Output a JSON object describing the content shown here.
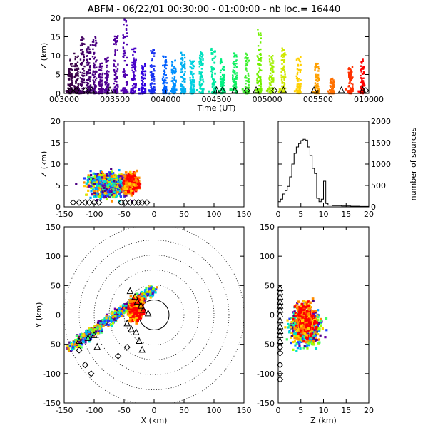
{
  "title": "ABFM - 06/22/01 00:30:00 - 01:00:00 - nb loc.=   16440",
  "chart_data": [
    {
      "id": "time_height",
      "type": "scatter",
      "xlabel": "Time (UT)",
      "ylabel": "Z (km)",
      "x_ticks": [
        "003000",
        "003500",
        "004000",
        "004500",
        "005000",
        "005500",
        "010000"
      ],
      "y_ticks": [
        0,
        5,
        10,
        15,
        20
      ],
      "ylim": [
        0,
        20
      ],
      "colors_by_time": true,
      "columns": [
        {
          "t": 0.02,
          "ztop": 9,
          "color": "#3a0048"
        },
        {
          "t": 0.04,
          "ztop": 11,
          "color": "#3a0048"
        },
        {
          "t": 0.06,
          "ztop": 15,
          "color": "#420060"
        },
        {
          "t": 0.08,
          "ztop": 13,
          "color": "#440070"
        },
        {
          "t": 0.1,
          "ztop": 15.5,
          "color": "#4a0080"
        },
        {
          "t": 0.12,
          "ztop": 8,
          "color": "#50008a"
        },
        {
          "t": 0.14,
          "ztop": 10,
          "color": "#500094"
        },
        {
          "t": 0.17,
          "ztop": 16,
          "color": "#52009e"
        },
        {
          "t": 0.2,
          "ztop": 20,
          "color": "#5000b0"
        },
        {
          "t": 0.23,
          "ztop": 12,
          "color": "#4800c8"
        },
        {
          "t": 0.26,
          "ztop": 8,
          "color": "#3000e0"
        },
        {
          "t": 0.29,
          "ztop": 12,
          "color": "#1830f0"
        },
        {
          "t": 0.33,
          "ztop": 10,
          "color": "#0060ff"
        },
        {
          "t": 0.36,
          "ztop": 9,
          "color": "#0090ff"
        },
        {
          "t": 0.39,
          "ztop": 11,
          "color": "#00b0f0"
        },
        {
          "t": 0.42,
          "ztop": 9,
          "color": "#00d0e0"
        },
        {
          "t": 0.45,
          "ztop": 11,
          "color": "#00e0c0"
        },
        {
          "t": 0.49,
          "ztop": 12,
          "color": "#00e8a0"
        },
        {
          "t": 0.52,
          "ztop": 9,
          "color": "#00f080"
        },
        {
          "t": 0.56,
          "ztop": 11,
          "color": "#10f060"
        },
        {
          "t": 0.6,
          "ztop": 11,
          "color": "#40f030"
        },
        {
          "t": 0.64,
          "ztop": 17,
          "color": "#70f000"
        },
        {
          "t": 0.68,
          "ztop": 10,
          "color": "#a0f000"
        },
        {
          "t": 0.72,
          "ztop": 12,
          "color": "#d0e800"
        },
        {
          "t": 0.77,
          "ztop": 10,
          "color": "#ffd000"
        },
        {
          "t": 0.83,
          "ztop": 8,
          "color": "#ffa000"
        },
        {
          "t": 0.88,
          "ztop": 4,
          "color": "#ff7000"
        },
        {
          "t": 0.94,
          "ztop": 7,
          "color": "#ff3000"
        },
        {
          "t": 0.98,
          "ztop": 9,
          "color": "#ff0000"
        }
      ],
      "ground_triangles": [
        0.09,
        0.15,
        0.5,
        0.52,
        0.56,
        0.63,
        0.72,
        0.82,
        0.91,
        0.98
      ],
      "ground_diamonds": [
        0.02,
        0.04,
        0.07,
        0.6,
        0.69,
        0.99
      ]
    },
    {
      "id": "xz_projection",
      "type": "scatter",
      "xlabel": "",
      "ylabel": "Z (km)",
      "x_ticks": [
        -150,
        -100,
        -50,
        0,
        50,
        100,
        150
      ],
      "y_ticks": [
        0,
        5,
        10,
        15,
        20
      ],
      "xlim": [
        -150,
        150
      ],
      "ylim": [
        0,
        20
      ]
    },
    {
      "id": "altitude_histogram",
      "type": "line",
      "xlabel": "",
      "ylabel": "number of sources",
      "x_ticks": [
        0,
        5,
        10,
        15,
        20
      ],
      "y_ticks": [
        0,
        500,
        1000,
        1500,
        2000
      ],
      "xlim": [
        0,
        20
      ],
      "ylim": [
        0,
        2000
      ],
      "x": [
        0,
        0.5,
        1,
        1.5,
        2,
        2.5,
        3,
        3.5,
        4,
        4.5,
        5,
        5.5,
        6,
        6.5,
        7,
        7.5,
        8,
        8.5,
        9,
        9.5,
        10,
        10.5,
        11,
        12,
        14,
        16,
        18,
        20
      ],
      "values": [
        120,
        180,
        300,
        380,
        480,
        700,
        1000,
        1250,
        1400,
        1480,
        1550,
        1580,
        1560,
        1400,
        1200,
        900,
        780,
        200,
        120,
        180,
        600,
        80,
        40,
        30,
        20,
        15,
        10,
        10
      ]
    },
    {
      "id": "plan_view",
      "type": "scatter",
      "xlabel": "X (km)",
      "ylabel": "Y (km)",
      "x_ticks": [
        -150,
        -100,
        -50,
        0,
        50,
        100,
        150
      ],
      "y_ticks": [
        -150,
        -100,
        -50,
        0,
        50,
        100,
        150
      ],
      "xlim": [
        -150,
        150
      ],
      "ylim": [
        -150,
        150
      ],
      "range_rings_km": [
        25,
        50,
        75,
        100,
        125,
        150
      ]
    },
    {
      "id": "yz_projection",
      "type": "scatter",
      "xlabel": "Z (km)",
      "ylabel": "",
      "x_ticks": [
        0,
        5,
        10,
        15,
        20
      ],
      "y_ticks": [
        -150,
        -100,
        -50,
        0,
        50,
        100,
        150
      ],
      "xlim": [
        0,
        20
      ],
      "ylim": [
        -150,
        150
      ]
    }
  ]
}
